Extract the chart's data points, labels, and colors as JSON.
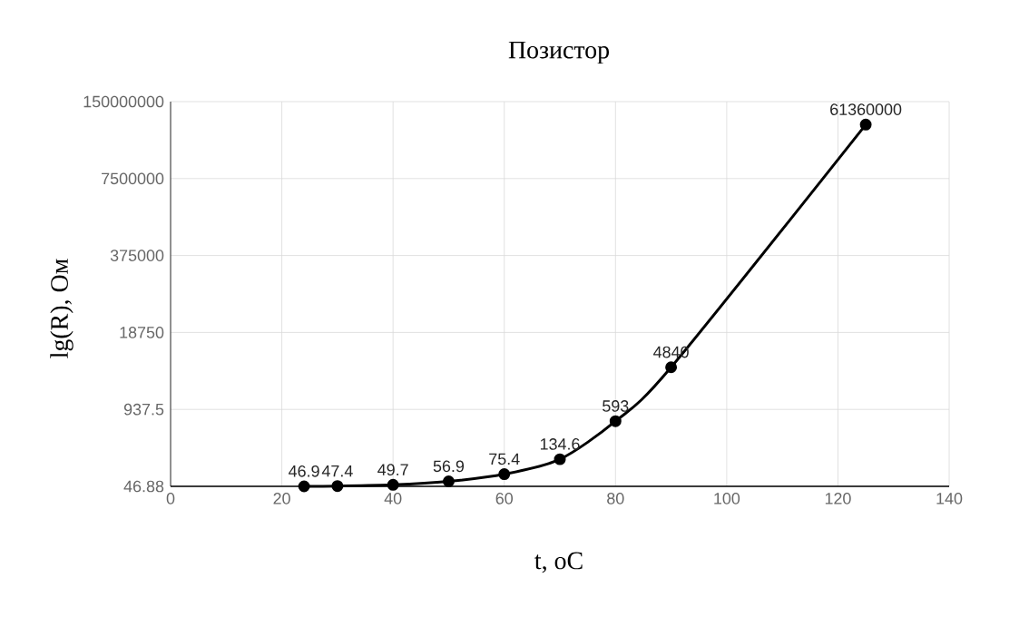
{
  "chart_data": {
    "type": "line",
    "title": "Позистор",
    "xlabel": "t, oC",
    "ylabel": "lg(R), Ом",
    "x": [
      24,
      30,
      40,
      50,
      60,
      70,
      80,
      90,
      125
    ],
    "values": [
      46.9,
      47.4,
      49.7,
      56.9,
      75.4,
      134.6,
      593,
      4840,
      61360000
    ],
    "color": "#000000",
    "xlim": [
      0,
      140
    ],
    "xticks": [
      0,
      20,
      40,
      60,
      80,
      100,
      120,
      140
    ],
    "ylim": [
      46.88,
      150000000
    ],
    "yticks": [
      46.88,
      937.5,
      18750,
      375000,
      7500000,
      150000000
    ],
    "log": "y",
    "grid": true,
    "marker": "circle",
    "data_labels": true
  }
}
